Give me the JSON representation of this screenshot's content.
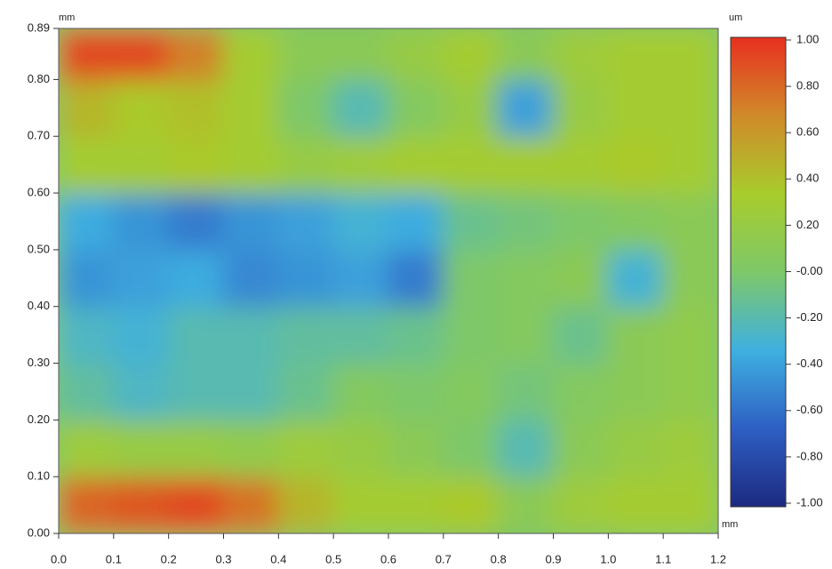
{
  "chart_data": {
    "type": "heatmap",
    "x_unit": "mm",
    "y_unit": "mm",
    "z_unit": "um",
    "x_unit_corner": "mm",
    "xbins": [
      0,
      0.1,
      0.2,
      0.3,
      0.4,
      0.5,
      0.6,
      0.7,
      0.8,
      0.9,
      1,
      1.1,
      1.2
    ],
    "ybins": [
      0,
      0.1,
      0.2,
      0.3,
      0.4,
      0.5,
      0.6,
      0.7,
      0.8,
      0.89
    ],
    "z": [
      [
        0.8,
        0.85,
        0.9,
        0.75,
        0.45,
        0.3,
        0.3,
        0.35,
        0.1,
        0.25,
        0.3,
        0.3
      ],
      [
        0.25,
        0.2,
        0.2,
        0.15,
        0.25,
        0.2,
        0.1,
        0.0,
        -0.2,
        0.1,
        0.2,
        0.25
      ],
      [
        -0.15,
        -0.25,
        -0.2,
        -0.2,
        -0.1,
        0.05,
        0.0,
        0.05,
        -0.05,
        0.05,
        0.1,
        0.15
      ],
      [
        -0.25,
        -0.3,
        -0.2,
        -0.2,
        -0.15,
        -0.15,
        -0.1,
        0.0,
        0.05,
        -0.1,
        0.1,
        0.15
      ],
      [
        -0.45,
        -0.4,
        -0.35,
        -0.5,
        -0.45,
        -0.4,
        -0.55,
        0.0,
        0.05,
        0.1,
        -0.3,
        0.1
      ],
      [
        -0.35,
        -0.45,
        -0.55,
        -0.45,
        -0.4,
        -0.3,
        -0.35,
        -0.1,
        -0.05,
        0.0,
        0.05,
        0.1
      ],
      [
        0.3,
        0.3,
        0.35,
        0.3,
        0.2,
        0.25,
        0.3,
        0.3,
        0.3,
        0.3,
        0.35,
        0.3
      ],
      [
        0.45,
        0.35,
        0.4,
        0.3,
        0.0,
        -0.2,
        0.05,
        0.2,
        -0.4,
        0.2,
        0.3,
        0.3
      ],
      [
        0.9,
        0.9,
        0.7,
        0.3,
        0.1,
        0.1,
        0.2,
        0.3,
        0.1,
        0.25,
        0.3,
        0.3
      ]
    ],
    "colormap": [
      "#1c2a80",
      "#2e5fc4",
      "#3fb0e0",
      "#7ec86a",
      "#a8cc2c",
      "#d08a2a",
      "#e83020"
    ],
    "xlim": [
      0,
      1.2
    ],
    "ylim": [
      0,
      0.89
    ],
    "zlim": [
      -1,
      1
    ],
    "xticks": [
      {
        "value": 0,
        "label": "0.0"
      },
      0.1,
      0.2,
      0.3,
      0.4,
      0.5,
      0.6,
      0.7,
      0.8,
      0.9,
      {
        "value": 1,
        "label": "1.0"
      },
      1.1,
      1.2
    ],
    "yticks": [
      {
        "value": 0,
        "label": "0.00"
      },
      {
        "value": 0.1,
        "label": "0.10"
      },
      {
        "value": 0.2,
        "label": "0.20"
      },
      {
        "value": 0.3,
        "label": "0.30"
      },
      {
        "value": 0.4,
        "label": "0.40"
      },
      {
        "value": 0.5,
        "label": "0.50"
      },
      {
        "value": 0.6,
        "label": "0.60"
      },
      {
        "value": 0.7,
        "label": "0.70"
      },
      {
        "value": 0.8,
        "label": "0.80"
      },
      0.89
    ],
    "zticks": [
      {
        "value": 1,
        "label": "1.00"
      },
      {
        "value": 0.8,
        "label": "0.80"
      },
      {
        "value": 0.6,
        "label": "0.60"
      },
      {
        "value": 0.4,
        "label": "0.40"
      },
      {
        "value": 0.2,
        "label": "0.20"
      },
      {
        "value": 0,
        "label": "-0.00"
      },
      {
        "value": -0.2,
        "label": "-0.20"
      },
      {
        "value": -0.4,
        "label": "-0.40"
      },
      {
        "value": -0.6,
        "label": "-0.60"
      },
      {
        "value": -0.8,
        "label": "-0.80"
      },
      {
        "value": -1,
        "label": "-1.00"
      }
    ]
  }
}
